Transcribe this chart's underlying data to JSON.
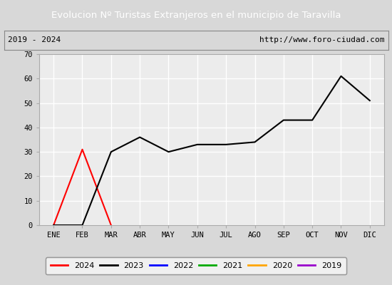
{
  "title": "Evolucion Nº Turistas Extranjeros en el municipio de Taravilla",
  "title_color": "#ffffff",
  "title_bg_color": "#4a6fa5",
  "subtitle_left": "2019 - 2024",
  "subtitle_right": "http://www.foro-ciudad.com",
  "months": [
    "ENE",
    "FEB",
    "MAR",
    "ABR",
    "MAY",
    "JUN",
    "JUL",
    "AGO",
    "SEP",
    "OCT",
    "NOV",
    "DIC"
  ],
  "ylim": [
    0,
    70
  ],
  "yticks": [
    0,
    10,
    20,
    30,
    40,
    50,
    60,
    70
  ],
  "series": {
    "2024": {
      "color": "#ff0000",
      "data": [
        0,
        31,
        0,
        null,
        null,
        null,
        null,
        null,
        null,
        null,
        null,
        null
      ]
    },
    "2023": {
      "color": "#000000",
      "data": [
        0,
        0,
        30,
        36,
        30,
        33,
        33,
        34,
        43,
        43,
        61,
        51
      ]
    },
    "2022": {
      "color": "#0000ff",
      "data": [
        null,
        null,
        null,
        null,
        null,
        null,
        null,
        null,
        null,
        null,
        null,
        null
      ]
    },
    "2021": {
      "color": "#00aa00",
      "data": [
        null,
        null,
        null,
        null,
        null,
        null,
        null,
        null,
        null,
        null,
        null,
        null
      ]
    },
    "2020": {
      "color": "#ffa500",
      "data": [
        null,
        null,
        null,
        null,
        null,
        null,
        null,
        null,
        null,
        null,
        null,
        null
      ]
    },
    "2019": {
      "color": "#9900cc",
      "data": [
        null,
        null,
        null,
        null,
        null,
        null,
        null,
        null,
        null,
        null,
        null,
        null
      ]
    }
  },
  "legend_order": [
    "2024",
    "2023",
    "2022",
    "2021",
    "2020",
    "2019"
  ],
  "plot_bg_color": "#ececec",
  "outer_bg_color": "#d8d8d8",
  "grid_color": "#ffffff",
  "fig_bg_color": "#d8d8d8"
}
